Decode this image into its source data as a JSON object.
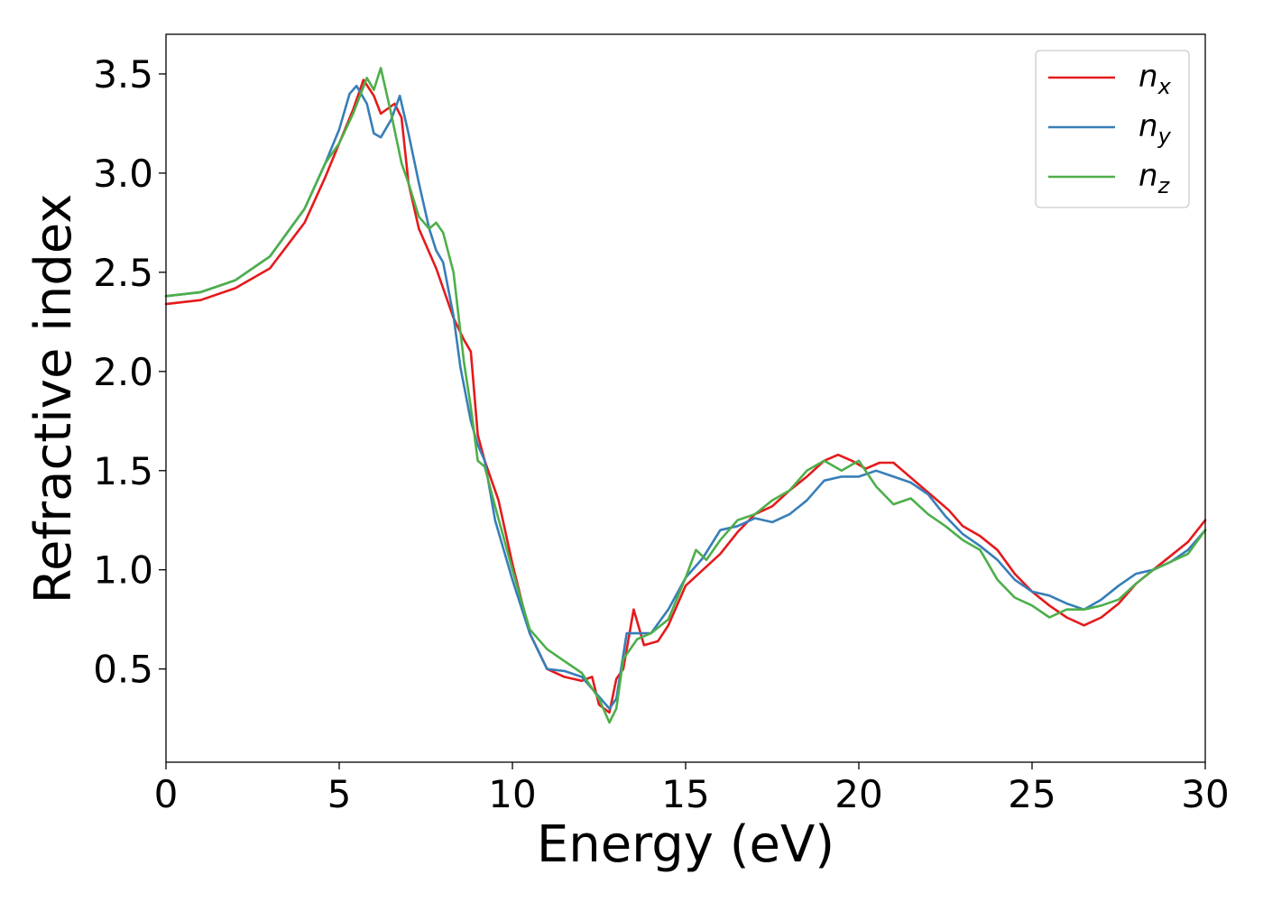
{
  "chart_data": {
    "type": "line",
    "title": "",
    "xlabel": "Energy (eV)",
    "ylabel": "Refractive index",
    "xlim": [
      0,
      30
    ],
    "ylim": [
      0.03,
      3.7
    ],
    "xticks": [
      0,
      5,
      10,
      15,
      20,
      25,
      30
    ],
    "xtick_labels": [
      "0",
      "5",
      "10",
      "15",
      "20",
      "25",
      "30"
    ],
    "yticks": [
      0.5,
      1.0,
      1.5,
      2.0,
      2.5,
      3.0,
      3.5
    ],
    "ytick_labels": [
      "0.5",
      "1.0",
      "1.5",
      "2.0",
      "2.5",
      "3.0",
      "3.5"
    ],
    "grid": false,
    "legend_position": "top-right",
    "series": [
      {
        "name": "n_x",
        "base": "n",
        "sub": "x",
        "color": "#e41a1c",
        "points": [
          [
            0.0,
            2.34
          ],
          [
            1.0,
            2.36
          ],
          [
            2.0,
            2.42
          ],
          [
            3.0,
            2.52
          ],
          [
            4.0,
            2.75
          ],
          [
            4.6,
            2.98
          ],
          [
            5.0,
            3.15
          ],
          [
            5.4,
            3.32
          ],
          [
            5.7,
            3.47
          ],
          [
            6.0,
            3.39
          ],
          [
            6.2,
            3.3
          ],
          [
            6.6,
            3.35
          ],
          [
            6.8,
            3.28
          ],
          [
            7.0,
            2.95
          ],
          [
            7.3,
            2.72
          ],
          [
            7.8,
            2.52
          ],
          [
            8.0,
            2.42
          ],
          [
            8.3,
            2.27
          ],
          [
            8.6,
            2.16
          ],
          [
            8.8,
            2.1
          ],
          [
            9.0,
            1.68
          ],
          [
            9.2,
            1.55
          ],
          [
            9.6,
            1.35
          ],
          [
            10.0,
            1.03
          ],
          [
            10.5,
            0.68
          ],
          [
            11.0,
            0.5
          ],
          [
            11.5,
            0.46
          ],
          [
            12.0,
            0.44
          ],
          [
            12.3,
            0.46
          ],
          [
            12.5,
            0.32
          ],
          [
            12.8,
            0.28
          ],
          [
            13.0,
            0.45
          ],
          [
            13.2,
            0.5
          ],
          [
            13.5,
            0.8
          ],
          [
            13.8,
            0.62
          ],
          [
            14.2,
            0.64
          ],
          [
            14.5,
            0.72
          ],
          [
            15.0,
            0.92
          ],
          [
            15.5,
            1.0
          ],
          [
            16.0,
            1.08
          ],
          [
            16.5,
            1.19
          ],
          [
            17.0,
            1.28
          ],
          [
            17.5,
            1.32
          ],
          [
            18.0,
            1.4
          ],
          [
            18.5,
            1.47
          ],
          [
            19.0,
            1.55
          ],
          [
            19.4,
            1.58
          ],
          [
            19.8,
            1.55
          ],
          [
            20.2,
            1.51
          ],
          [
            20.6,
            1.54
          ],
          [
            21.0,
            1.54
          ],
          [
            21.4,
            1.48
          ],
          [
            21.8,
            1.42
          ],
          [
            22.2,
            1.36
          ],
          [
            22.6,
            1.3
          ],
          [
            23.0,
            1.22
          ],
          [
            23.5,
            1.17
          ],
          [
            24.0,
            1.1
          ],
          [
            24.5,
            0.98
          ],
          [
            25.0,
            0.89
          ],
          [
            25.5,
            0.82
          ],
          [
            26.0,
            0.76
          ],
          [
            26.5,
            0.72
          ],
          [
            27.0,
            0.76
          ],
          [
            27.5,
            0.83
          ],
          [
            28.0,
            0.93
          ],
          [
            28.5,
            1.0
          ],
          [
            29.0,
            1.07
          ],
          [
            29.5,
            1.14
          ],
          [
            30.0,
            1.25
          ]
        ]
      },
      {
        "name": "n_y",
        "base": "n",
        "sub": "y",
        "color": "#377eb8",
        "points": [
          [
            0.0,
            2.38
          ],
          [
            1.0,
            2.4
          ],
          [
            2.0,
            2.46
          ],
          [
            3.0,
            2.58
          ],
          [
            4.0,
            2.82
          ],
          [
            4.6,
            3.05
          ],
          [
            5.0,
            3.22
          ],
          [
            5.3,
            3.4
          ],
          [
            5.5,
            3.44
          ],
          [
            5.8,
            3.35
          ],
          [
            6.0,
            3.2
          ],
          [
            6.2,
            3.18
          ],
          [
            6.5,
            3.27
          ],
          [
            6.75,
            3.39
          ],
          [
            7.0,
            3.2
          ],
          [
            7.3,
            2.95
          ],
          [
            7.6,
            2.72
          ],
          [
            7.8,
            2.61
          ],
          [
            8.0,
            2.55
          ],
          [
            8.3,
            2.28
          ],
          [
            8.5,
            2.02
          ],
          [
            8.8,
            1.75
          ],
          [
            9.0,
            1.63
          ],
          [
            9.2,
            1.55
          ],
          [
            9.5,
            1.25
          ],
          [
            10.0,
            0.95
          ],
          [
            10.5,
            0.68
          ],
          [
            11.0,
            0.5
          ],
          [
            11.5,
            0.49
          ],
          [
            12.0,
            0.46
          ],
          [
            12.5,
            0.36
          ],
          [
            12.8,
            0.3
          ],
          [
            13.0,
            0.35
          ],
          [
            13.3,
            0.68
          ],
          [
            13.6,
            0.68
          ],
          [
            14.0,
            0.68
          ],
          [
            14.5,
            0.8
          ],
          [
            15.0,
            0.96
          ],
          [
            15.5,
            1.06
          ],
          [
            16.0,
            1.2
          ],
          [
            16.5,
            1.22
          ],
          [
            17.0,
            1.26
          ],
          [
            17.5,
            1.24
          ],
          [
            18.0,
            1.28
          ],
          [
            18.5,
            1.35
          ],
          [
            19.0,
            1.45
          ],
          [
            19.5,
            1.47
          ],
          [
            20.0,
            1.47
          ],
          [
            20.5,
            1.5
          ],
          [
            21.0,
            1.47
          ],
          [
            21.5,
            1.44
          ],
          [
            22.0,
            1.38
          ],
          [
            22.5,
            1.27
          ],
          [
            23.0,
            1.18
          ],
          [
            23.5,
            1.12
          ],
          [
            24.0,
            1.05
          ],
          [
            24.5,
            0.95
          ],
          [
            25.0,
            0.89
          ],
          [
            25.5,
            0.87
          ],
          [
            26.0,
            0.83
          ],
          [
            26.5,
            0.8
          ],
          [
            27.0,
            0.85
          ],
          [
            27.5,
            0.92
          ],
          [
            28.0,
            0.98
          ],
          [
            28.5,
            1.0
          ],
          [
            29.0,
            1.04
          ],
          [
            29.5,
            1.1
          ],
          [
            30.0,
            1.2
          ]
        ]
      },
      {
        "name": "n_z",
        "base": "n",
        "sub": "z",
        "color": "#4daf4a",
        "points": [
          [
            0.0,
            2.38
          ],
          [
            1.0,
            2.4
          ],
          [
            2.0,
            2.46
          ],
          [
            3.0,
            2.58
          ],
          [
            4.0,
            2.82
          ],
          [
            4.6,
            3.05
          ],
          [
            5.0,
            3.15
          ],
          [
            5.4,
            3.3
          ],
          [
            5.8,
            3.48
          ],
          [
            6.0,
            3.42
          ],
          [
            6.2,
            3.53
          ],
          [
            6.5,
            3.3
          ],
          [
            6.8,
            3.05
          ],
          [
            7.0,
            2.95
          ],
          [
            7.3,
            2.78
          ],
          [
            7.6,
            2.72
          ],
          [
            7.8,
            2.75
          ],
          [
            8.0,
            2.7
          ],
          [
            8.3,
            2.5
          ],
          [
            8.6,
            2.05
          ],
          [
            8.8,
            1.82
          ],
          [
            9.0,
            1.55
          ],
          [
            9.2,
            1.52
          ],
          [
            9.5,
            1.32
          ],
          [
            10.0,
            1.0
          ],
          [
            10.5,
            0.7
          ],
          [
            11.0,
            0.6
          ],
          [
            11.5,
            0.54
          ],
          [
            12.0,
            0.48
          ],
          [
            12.5,
            0.35
          ],
          [
            12.8,
            0.23
          ],
          [
            13.0,
            0.3
          ],
          [
            13.2,
            0.55
          ],
          [
            13.6,
            0.65
          ],
          [
            14.0,
            0.68
          ],
          [
            14.5,
            0.75
          ],
          [
            15.0,
            0.96
          ],
          [
            15.3,
            1.1
          ],
          [
            15.6,
            1.05
          ],
          [
            16.0,
            1.15
          ],
          [
            16.5,
            1.25
          ],
          [
            17.0,
            1.28
          ],
          [
            17.5,
            1.35
          ],
          [
            18.0,
            1.4
          ],
          [
            18.5,
            1.5
          ],
          [
            19.0,
            1.55
          ],
          [
            19.5,
            1.5
          ],
          [
            20.0,
            1.55
          ],
          [
            20.5,
            1.42
          ],
          [
            21.0,
            1.33
          ],
          [
            21.5,
            1.36
          ],
          [
            22.0,
            1.28
          ],
          [
            22.5,
            1.22
          ],
          [
            23.0,
            1.15
          ],
          [
            23.5,
            1.1
          ],
          [
            24.0,
            0.95
          ],
          [
            24.5,
            0.86
          ],
          [
            25.0,
            0.82
          ],
          [
            25.5,
            0.76
          ],
          [
            26.0,
            0.8
          ],
          [
            26.5,
            0.8
          ],
          [
            27.0,
            0.82
          ],
          [
            27.5,
            0.85
          ],
          [
            28.0,
            0.93
          ],
          [
            28.5,
            1.0
          ],
          [
            29.0,
            1.04
          ],
          [
            29.5,
            1.08
          ],
          [
            30.0,
            1.2
          ]
        ]
      }
    ]
  }
}
